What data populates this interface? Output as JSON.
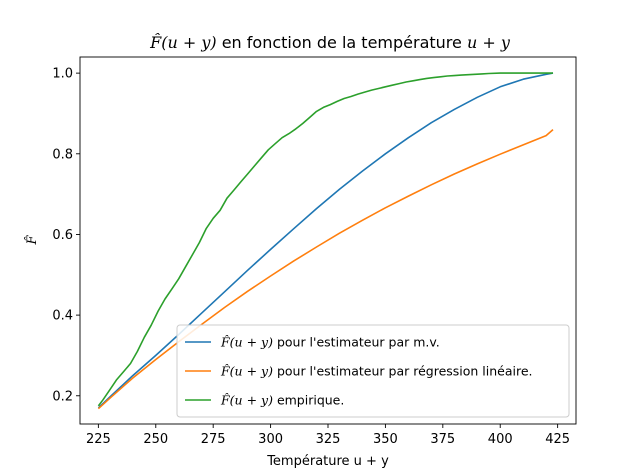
{
  "chart_data": {
    "type": "line",
    "title_math": "F̂(u + y)",
    "title_rest": " en fonction de la température ",
    "title_math2": "u + y",
    "xlabel": "Température u + y",
    "ylabel": "F̂",
    "xlim": [
      217,
      433
    ],
    "ylim": [
      0.13,
      1.04
    ],
    "xticks": [
      225,
      250,
      275,
      300,
      325,
      350,
      375,
      400,
      425
    ],
    "yticks": [
      0.2,
      0.4,
      0.6,
      0.8,
      1.0
    ],
    "xtick_labels": [
      "225",
      "250",
      "275",
      "300",
      "325",
      "350",
      "375",
      "400",
      "425"
    ],
    "ytick_labels": [
      "0.2",
      "0.4",
      "0.6",
      "0.8",
      "1.0"
    ],
    "legend_position": "lower-right",
    "series": [
      {
        "name_math": "F̂(u + y)",
        "name_rest": " pour l'estimateur par m.v.",
        "color": "#1f77b4",
        "x": [
          225,
          230,
          240,
          250,
          260,
          270,
          280,
          290,
          300,
          310,
          320,
          330,
          340,
          350,
          360,
          370,
          380,
          390,
          400,
          410,
          420,
          423
        ],
        "y": [
          0.17,
          0.197,
          0.25,
          0.3,
          0.352,
          0.405,
          0.458,
          0.511,
          0.563,
          0.614,
          0.664,
          0.712,
          0.757,
          0.8,
          0.84,
          0.877,
          0.91,
          0.94,
          0.966,
          0.985,
          0.997,
          1.0
        ]
      },
      {
        "name_math": "F̂(u + y)",
        "name_rest": " pour l'estimateur par régression linéaire.",
        "color": "#ff7f0e",
        "x": [
          225,
          230,
          240,
          250,
          260,
          270,
          280,
          290,
          300,
          310,
          320,
          330,
          340,
          350,
          360,
          370,
          380,
          390,
          400,
          410,
          420,
          423
        ],
        "y": [
          0.168,
          0.194,
          0.244,
          0.29,
          0.334,
          0.377,
          0.419,
          0.459,
          0.497,
          0.534,
          0.569,
          0.603,
          0.635,
          0.666,
          0.695,
          0.723,
          0.75,
          0.775,
          0.799,
          0.822,
          0.845,
          0.86
        ]
      },
      {
        "name_math": "F̂(u + y)",
        "name_rest": " empirique.",
        "color": "#2ca02c",
        "x": [
          225,
          227,
          230,
          233,
          236,
          239,
          242,
          245,
          248,
          251,
          254,
          257,
          260,
          263,
          266,
          269,
          272,
          275,
          278,
          281,
          284,
          287,
          290,
          293,
          296,
          299,
          302,
          305,
          308,
          311,
          314,
          317,
          320,
          323,
          326,
          329,
          332,
          335,
          338,
          341,
          344,
          347,
          350,
          353,
          356,
          359,
          362,
          365,
          368,
          371,
          374,
          377,
          380,
          383,
          386,
          389,
          392,
          395,
          400,
          405,
          410,
          415,
          420,
          423
        ],
        "y": [
          0.175,
          0.19,
          0.215,
          0.24,
          0.26,
          0.28,
          0.31,
          0.345,
          0.375,
          0.41,
          0.44,
          0.465,
          0.49,
          0.52,
          0.55,
          0.58,
          0.615,
          0.64,
          0.66,
          0.69,
          0.71,
          0.73,
          0.75,
          0.77,
          0.79,
          0.81,
          0.825,
          0.84,
          0.85,
          0.862,
          0.875,
          0.89,
          0.905,
          0.915,
          0.922,
          0.93,
          0.937,
          0.942,
          0.948,
          0.953,
          0.958,
          0.962,
          0.966,
          0.97,
          0.974,
          0.978,
          0.981,
          0.984,
          0.987,
          0.989,
          0.991,
          0.993,
          0.994,
          0.995,
          0.996,
          0.997,
          0.998,
          0.999,
          1.0,
          1.0,
          1.0,
          1.0,
          1.0,
          1.0
        ]
      }
    ]
  }
}
